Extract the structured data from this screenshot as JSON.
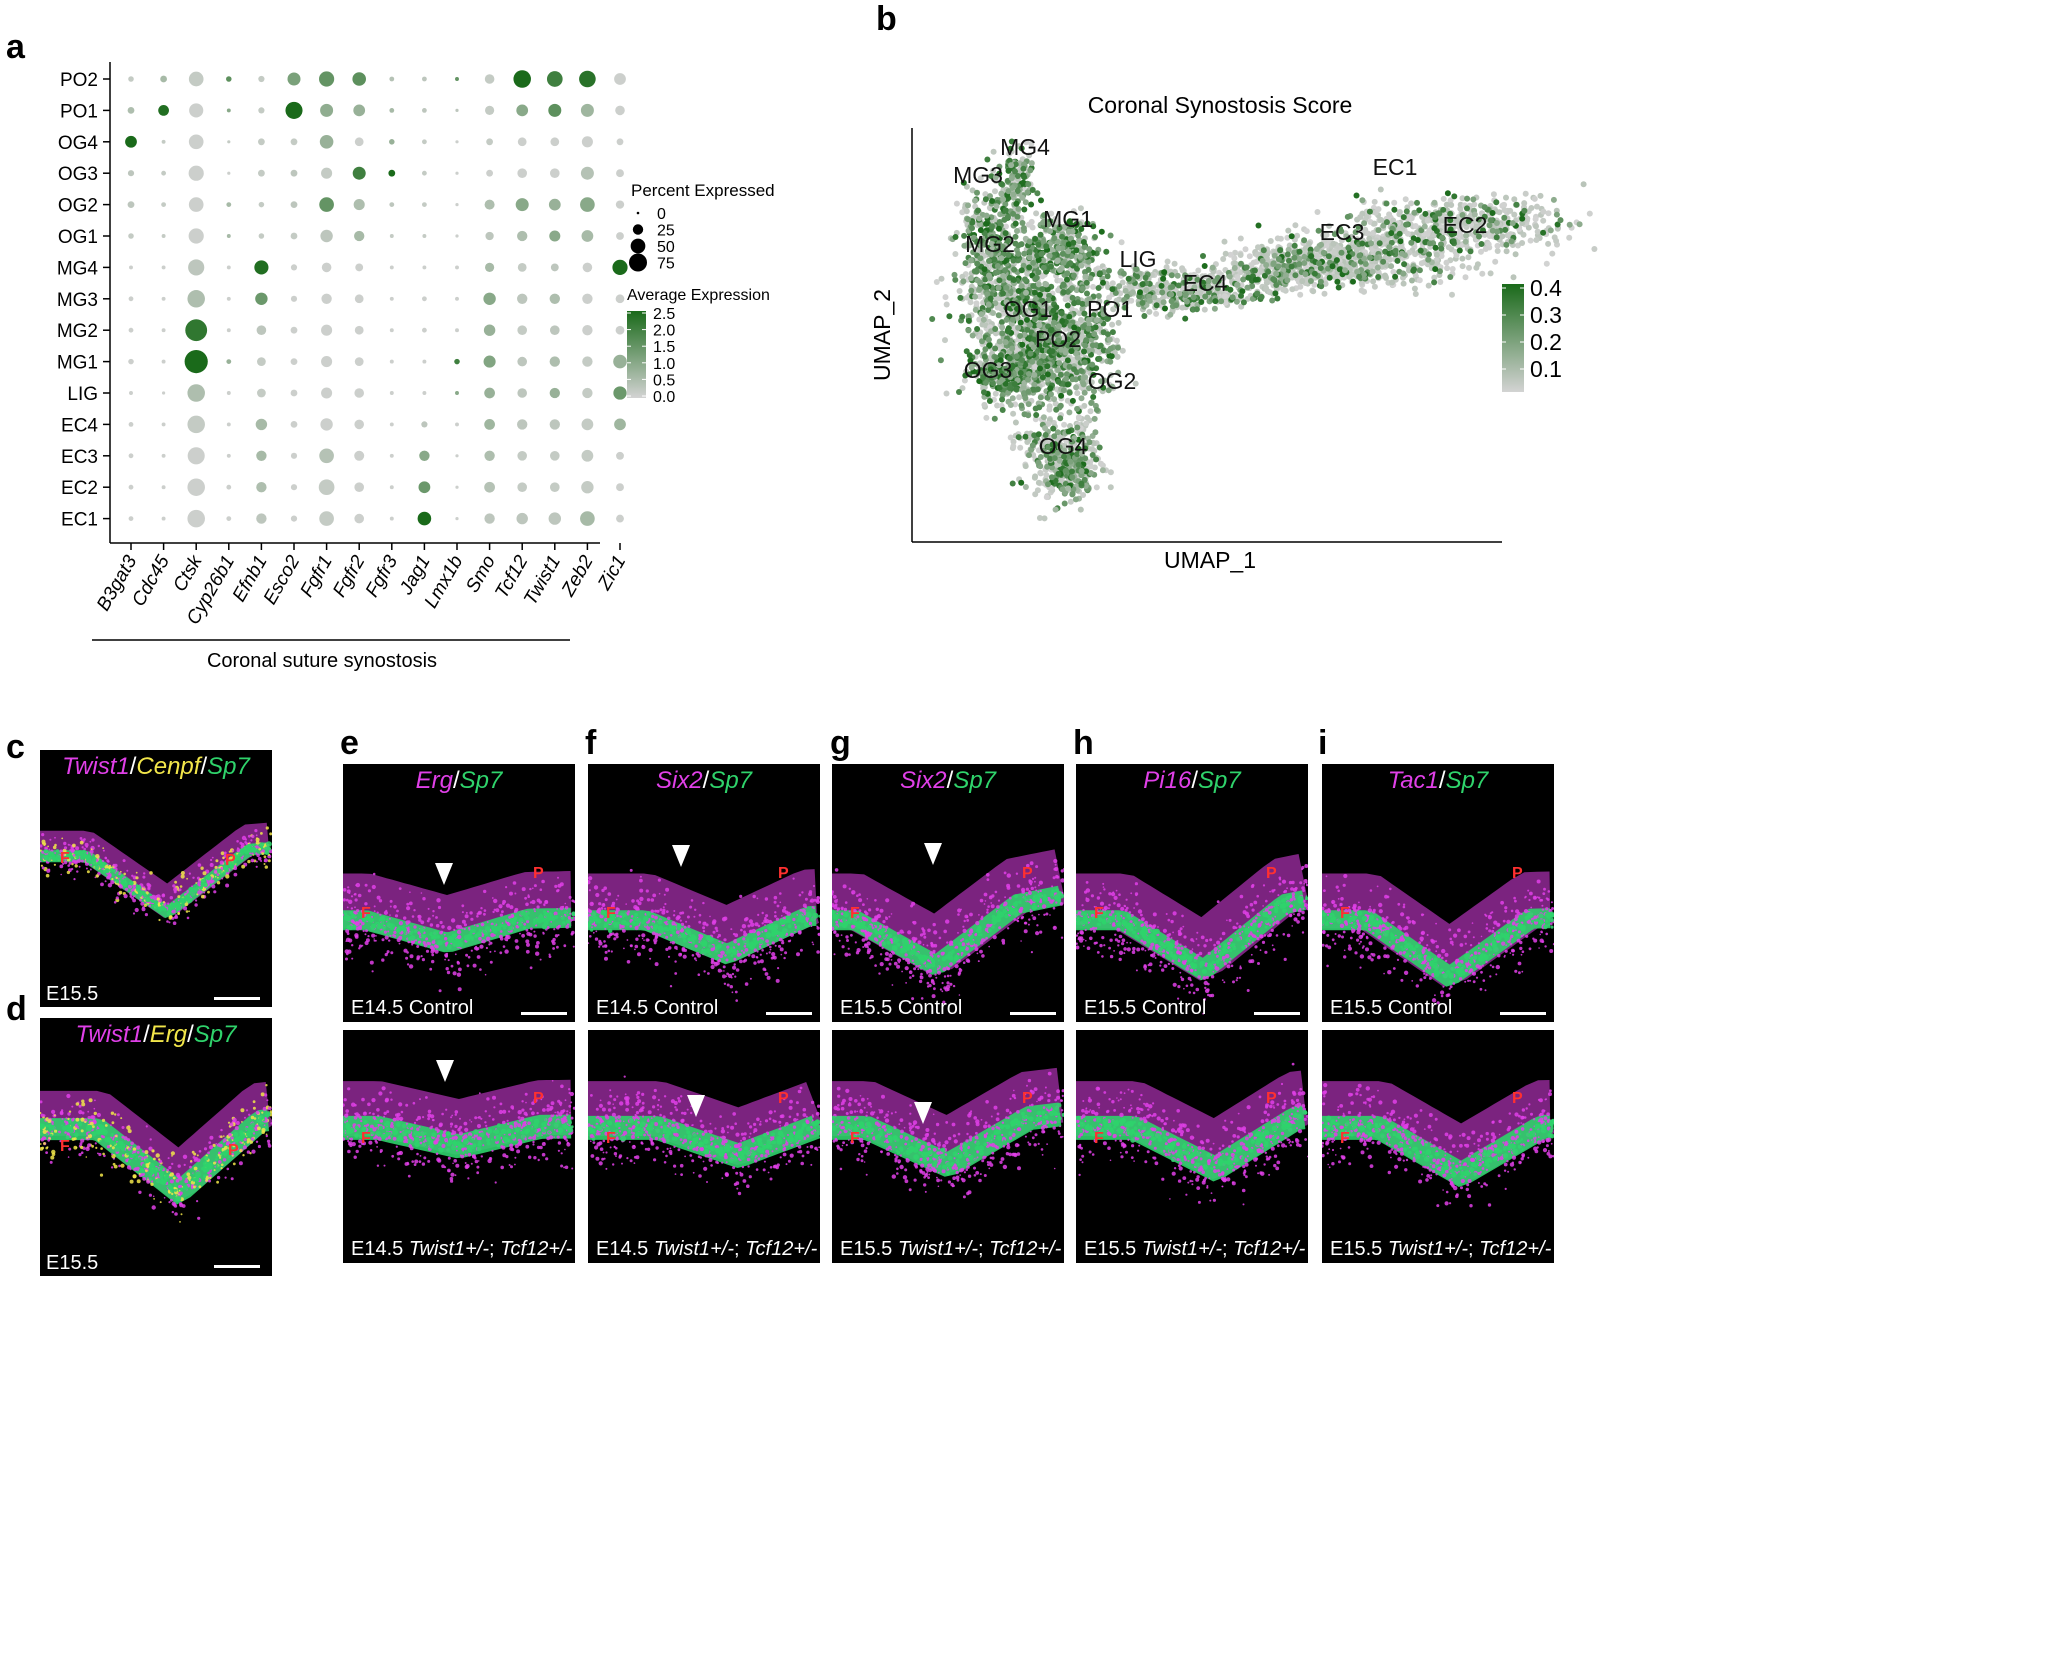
{
  "figure": {
    "panel_letters": [
      "a",
      "b",
      "c",
      "d",
      "e",
      "f",
      "g",
      "h",
      "i"
    ]
  },
  "chart_data": [
    {
      "type": "dotplot",
      "categories_y": [
        "PO2",
        "PO1",
        "OG4",
        "OG3",
        "OG2",
        "OG1",
        "MG4",
        "MG3",
        "MG2",
        "MG1",
        "LIG",
        "EC4",
        "EC3",
        "EC2",
        "EC1"
      ],
      "categories_x": [
        "B3gat3",
        "Cdc45",
        "Ctsk",
        "Cyp26b1",
        "Efnb1",
        "Esco2",
        "Fgfr1",
        "Fgfr2",
        "Fgfr3",
        "Jag1",
        "Lmx1b",
        "Smo",
        "Tcf12",
        "Twist1",
        "Zeb2",
        "Zic1"
      ],
      "percent": [
        [
          4,
          6,
          28,
          4,
          5,
          22,
          30,
          24,
          3,
          3,
          2,
          12,
          40,
          32,
          36,
          18
        ],
        [
          6,
          15,
          26,
          2,
          5,
          38,
          22,
          18,
          3,
          3,
          1,
          11,
          18,
          22,
          22,
          12
        ],
        [
          18,
          2,
          28,
          1,
          6,
          6,
          24,
          10,
          4,
          3,
          1,
          6,
          10,
          10,
          16,
          6
        ],
        [
          5,
          3,
          30,
          1,
          6,
          6,
          16,
          22,
          6,
          3,
          1,
          6,
          12,
          12,
          22,
          8
        ],
        [
          6,
          3,
          28,
          3,
          4,
          6,
          28,
          16,
          3,
          3,
          1,
          13,
          22,
          18,
          28,
          9
        ],
        [
          4,
          2,
          30,
          2,
          4,
          6,
          20,
          14,
          2,
          2,
          1,
          9,
          14,
          16,
          18,
          8
        ],
        [
          2,
          2,
          34,
          2,
          26,
          5,
          12,
          8,
          2,
          2,
          2,
          11,
          10,
          8,
          12,
          30
        ],
        [
          3,
          2,
          40,
          2,
          20,
          5,
          14,
          10,
          2,
          3,
          2,
          20,
          14,
          14,
          14,
          10
        ],
        [
          3,
          2,
          62,
          2,
          12,
          6,
          16,
          10,
          2,
          3,
          2,
          17,
          12,
          12,
          14,
          10
        ],
        [
          4,
          2,
          70,
          3,
          10,
          6,
          16,
          10,
          2,
          2,
          4,
          19,
          12,
          14,
          14,
          24
        ],
        [
          2,
          1,
          40,
          2,
          10,
          6,
          16,
          12,
          2,
          2,
          2,
          15,
          12,
          14,
          14,
          23
        ],
        [
          3,
          2,
          40,
          2,
          17,
          6,
          20,
          12,
          2,
          5,
          2,
          15,
          14,
          14,
          18,
          18
        ],
        [
          3,
          2,
          38,
          2,
          14,
          5,
          28,
          13,
          2,
          14,
          1,
          14,
          12,
          12,
          18,
          8
        ],
        [
          3,
          2,
          40,
          3,
          14,
          5,
          32,
          12,
          2,
          18,
          1,
          15,
          12,
          12,
          20,
          8
        ],
        [
          3,
          2,
          40,
          3,
          14,
          5,
          28,
          12,
          2,
          24,
          1,
          14,
          17,
          20,
          28,
          8
        ]
      ],
      "avg_expression": [
        [
          0.2,
          0.6,
          0.2,
          1.6,
          0.2,
          1.2,
          1.5,
          1.6,
          0.4,
          0.3,
          1.5,
          0.2,
          2.5,
          2.0,
          2.3,
          0.1
        ],
        [
          0.5,
          2.4,
          0.1,
          1.0,
          0.2,
          2.5,
          0.9,
          0.8,
          0.6,
          0.3,
          0.3,
          0.2,
          1.0,
          1.6,
          0.7,
          0.1
        ],
        [
          2.5,
          0.2,
          0.1,
          0.2,
          0.2,
          0.2,
          0.8,
          0.1,
          0.8,
          0.2,
          0.1,
          0.2,
          0.1,
          0.1,
          0.1,
          0.1
        ],
        [
          0.3,
          0.2,
          0.1,
          0.1,
          0.2,
          0.3,
          0.2,
          2.0,
          2.5,
          0.2,
          0.1,
          0.1,
          0.1,
          0.1,
          0.4,
          0.1
        ],
        [
          0.3,
          0.2,
          0.1,
          0.6,
          0.2,
          0.3,
          1.5,
          0.5,
          0.3,
          0.2,
          0.1,
          0.5,
          1.0,
          0.8,
          1.0,
          0.1
        ],
        [
          0.2,
          0.2,
          0.1,
          0.6,
          0.2,
          0.2,
          0.3,
          0.6,
          0.2,
          0.2,
          0.1,
          0.3,
          0.5,
          1.0,
          0.6,
          0.1
        ],
        [
          0.1,
          0.1,
          0.3,
          0.1,
          2.4,
          0.1,
          0.1,
          0.1,
          0.1,
          0.1,
          0.1,
          0.6,
          0.2,
          0.3,
          0.1,
          2.5
        ],
        [
          0.1,
          0.1,
          0.5,
          0.1,
          1.4,
          0.1,
          0.1,
          0.1,
          0.1,
          0.1,
          0.1,
          1.0,
          0.3,
          0.5,
          0.1,
          0.1
        ],
        [
          0.1,
          0.1,
          2.2,
          0.1,
          0.3,
          0.1,
          0.1,
          0.1,
          0.1,
          0.1,
          0.1,
          0.8,
          0.2,
          0.3,
          0.1,
          0.1
        ],
        [
          0.1,
          0.1,
          2.5,
          0.8,
          0.2,
          0.1,
          0.1,
          0.1,
          0.1,
          0.1,
          2.0,
          1.1,
          0.3,
          0.5,
          0.2,
          0.8
        ],
        [
          0.1,
          0.1,
          0.5,
          0.1,
          0.2,
          0.1,
          0.1,
          0.1,
          0.1,
          0.1,
          1.0,
          0.8,
          0.3,
          0.8,
          0.2,
          1.4
        ],
        [
          0.1,
          0.1,
          0.2,
          0.1,
          0.6,
          0.1,
          0.1,
          0.1,
          0.1,
          0.3,
          0.1,
          0.7,
          0.3,
          0.3,
          0.2,
          0.7
        ],
        [
          0.1,
          0.1,
          0.1,
          0.1,
          0.6,
          0.1,
          0.4,
          0.1,
          0.1,
          1.0,
          0.1,
          0.5,
          0.2,
          0.2,
          0.2,
          0.1
        ],
        [
          0.1,
          0.1,
          0.1,
          0.1,
          0.5,
          0.1,
          0.2,
          0.1,
          0.1,
          1.4,
          0.1,
          0.4,
          0.2,
          0.2,
          0.2,
          0.1
        ],
        [
          0.1,
          0.1,
          0.1,
          0.1,
          0.3,
          0.1,
          0.2,
          0.1,
          0.1,
          2.5,
          0.1,
          0.3,
          0.3,
          0.3,
          0.6,
          0.1
        ]
      ],
      "xlabel": "Coronal suture synostosis",
      "size_legend": {
        "title": "Percent Expressed",
        "breaks": [
          0,
          25,
          50,
          75
        ]
      },
      "color_legend": {
        "title": "Average Expression",
        "breaks": [
          "2.5",
          "2.0",
          "1.5",
          "1.0",
          "0.5",
          "0.0"
        ],
        "low": "#d3d3d3",
        "high": "#1a6a1a"
      }
    },
    {
      "type": "scatter",
      "title": "Coronal Synostosis Score",
      "xlabel": "UMAP_1",
      "ylabel": "UMAP_2",
      "cluster_labels": [
        "MG4",
        "MG3",
        "MG1",
        "MG2",
        "LIG",
        "EC4",
        "EC1",
        "EC3",
        "EC2",
        "OG1",
        "PO1",
        "PO2",
        "OG3",
        "OG2",
        "OG4"
      ],
      "color_legend": {
        "breaks": [
          "0.4",
          "0.3",
          "0.2",
          "0.1"
        ],
        "low": "#d3d3d3",
        "high": "#1a6a1a"
      }
    }
  ],
  "micrographs": {
    "c": {
      "header": [
        "Twist1",
        "/",
        "Cenpf",
        "/",
        "Sp7"
      ],
      "label": "E15.5"
    },
    "d": {
      "header": [
        "Twist1",
        "/",
        "Erg",
        "/",
        "Sp7"
      ],
      "label": "E15.5"
    },
    "e": {
      "header": [
        "Erg",
        "/",
        "Sp7"
      ],
      "top_label": "E14.5 Control",
      "bottom_label_prefix": "E14.5 ",
      "bottom_label_geno1": "Twist1+/-",
      "bottom_label_sep": "; ",
      "bottom_label_geno2": "Tcf12+/-"
    },
    "f": {
      "header": [
        "Six2",
        "/",
        "Sp7"
      ],
      "top_label": "E14.5 Control",
      "bottom_label_prefix": "E14.5 ",
      "bottom_label_geno1": "Twist1+/-",
      "bottom_label_sep": "; ",
      "bottom_label_geno2": "Tcf12+/-"
    },
    "g": {
      "header": [
        "Six2",
        "/",
        "Sp7"
      ],
      "top_label": "E15.5 Control",
      "bottom_label_prefix": "E15.5 ",
      "bottom_label_geno1": "Twist1+/-",
      "bottom_label_sep": "; ",
      "bottom_label_geno2": "Tcf12+/-"
    },
    "h": {
      "header": [
        "Pi16",
        "/",
        "Sp7"
      ],
      "top_label": "E15.5 Control",
      "bottom_label_prefix": "E15.5 ",
      "bottom_label_geno1": "Twist1+/-",
      "bottom_label_sep": "; ",
      "bottom_label_geno2": "Tcf12+/-"
    },
    "i": {
      "header": [
        "Tac1",
        "/",
        "Sp7"
      ],
      "top_label": "E15.5 Control",
      "bottom_label_prefix": "E15.5 ",
      "bottom_label_geno1": "Twist1+/-",
      "bottom_label_sep": "; ",
      "bottom_label_geno2": "Tcf12+/-"
    },
    "bone_labels": {
      "frontal": "F",
      "parietal": "P"
    }
  },
  "colors": {
    "magenta": "#e040e8",
    "yellow": "#f2e64a",
    "green": "#2fd36b",
    "bone_label": "#ff3030",
    "expr_low": "#d3d3d3",
    "expr_high": "#1a6a1a"
  }
}
